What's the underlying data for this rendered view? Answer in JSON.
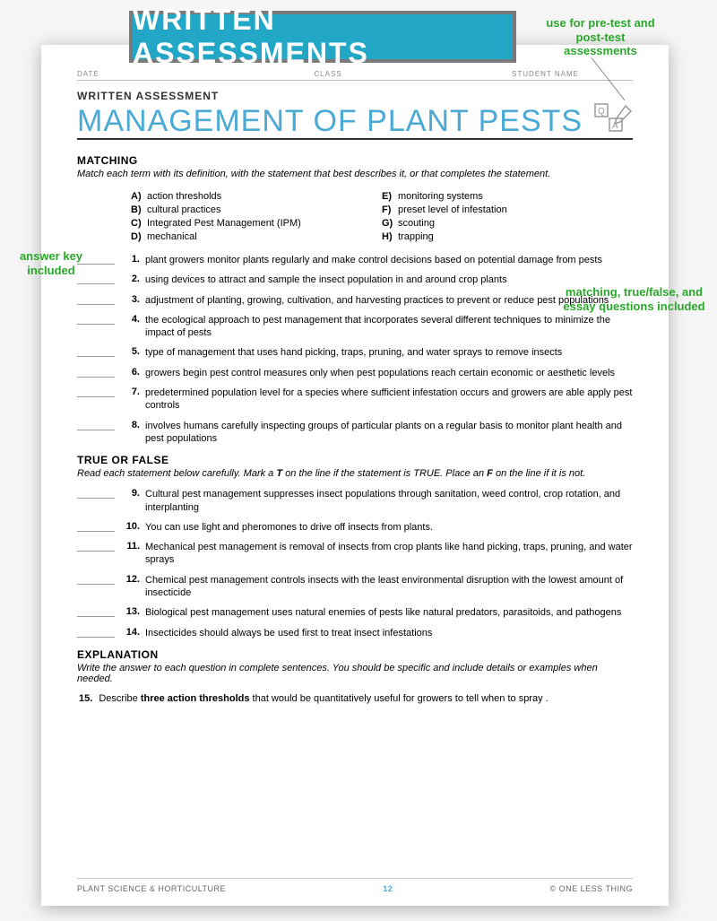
{
  "banner": {
    "title": "WRITTEN ASSESSMENTS"
  },
  "callouts": {
    "topRight": "use for pre-test and post-test assessments",
    "left": "answer key included",
    "right": "matching, true/false, and essay questions included"
  },
  "header": {
    "fields": [
      "DATE",
      "CLASS",
      "STUDENT NAME"
    ],
    "pretitle": "WRITTEN ASSESSMENT",
    "title": "MANAGEMENT OF PLANT PESTS"
  },
  "sections": {
    "matching": {
      "head": "MATCHING",
      "instr": "Match each term with its definition, with the statement that best describes it, or that completes the statement.",
      "termsLeft": [
        {
          "l": "A)",
          "t": "action thresholds"
        },
        {
          "l": "B)",
          "t": "cultural practices"
        },
        {
          "l": "C)",
          "t": "Integrated Pest Management (IPM)"
        },
        {
          "l": "D)",
          "t": "mechanical"
        }
      ],
      "termsRight": [
        {
          "l": "E)",
          "t": "monitoring systems"
        },
        {
          "l": "F)",
          "t": "preset level of infestation"
        },
        {
          "l": "G)",
          "t": "scouting"
        },
        {
          "l": "H)",
          "t": "trapping"
        }
      ],
      "questions": [
        {
          "n": "1.",
          "t": "plant growers monitor plants regularly and make control decisions based on potential damage from pests"
        },
        {
          "n": "2.",
          "t": "using devices to attract and sample the insect population in and around crop plants"
        },
        {
          "n": "3.",
          "t": "adjustment of planting, growing, cultivation, and harvesting practices to prevent or reduce pest populations"
        },
        {
          "n": "4.",
          "t": "the ecological approach to pest management that incorporates several different techniques to minimize the impact of pests"
        },
        {
          "n": "5.",
          "t": "type of management that uses hand picking, traps, pruning, and water sprays to remove insects"
        },
        {
          "n": "6.",
          "t": "growers begin pest control measures only when pest populations reach certain economic or aesthetic levels"
        },
        {
          "n": "7.",
          "t": "predetermined population level for a species where sufficient infestation occurs and growers are able apply pest controls"
        },
        {
          "n": "8.",
          "t": "involves humans carefully inspecting groups of particular plants on a regular basis to monitor plant health and pest populations"
        }
      ]
    },
    "tf": {
      "head": "TRUE OR FALSE",
      "instr": "Read each statement below carefully. Mark a T on the line if the statement is TRUE. Place an F on the line if it is not.",
      "questions": [
        {
          "n": "9.",
          "t": "Cultural pest management suppresses insect populations through sanitation, weed control, crop rotation, and interplanting"
        },
        {
          "n": "10.",
          "t": "You can use light and pheromones to drive off insects from plants."
        },
        {
          "n": "11.",
          "t": "Mechanical pest management is removal of insects from crop plants like hand picking,  traps, pruning, and water sprays"
        },
        {
          "n": "12.",
          "t": "Chemical pest management controls insects with the least environmental disruption with the lowest amount of insecticide"
        },
        {
          "n": "13.",
          "t": "Biological pest management uses natural enemies of pests like natural predators, parasitoids, and pathogens"
        },
        {
          "n": "14.",
          "t": "Insecticides should always be used first to treat insect infestations"
        }
      ]
    },
    "essay": {
      "head": "EXPLANATION",
      "instr": "Write the answer to each question in complete sentences. You should be specific and include details or examples when needed.",
      "q": {
        "n": "15.",
        "pre": "Describe ",
        "bold": "three action thresholds",
        "post": " that would be quantitatively useful for growers to tell when to spray ."
      }
    }
  },
  "footer": {
    "left": "PLANT SCIENCE & HORTICULTURE",
    "page": "12",
    "right": "© ONE LESS THING"
  },
  "colors": {
    "bannerBg": "#23a7c6",
    "bannerBorder": "#7a7a7a",
    "titleBlue": "#4ba9d6",
    "calloutGreen": "#2aa82a"
  }
}
